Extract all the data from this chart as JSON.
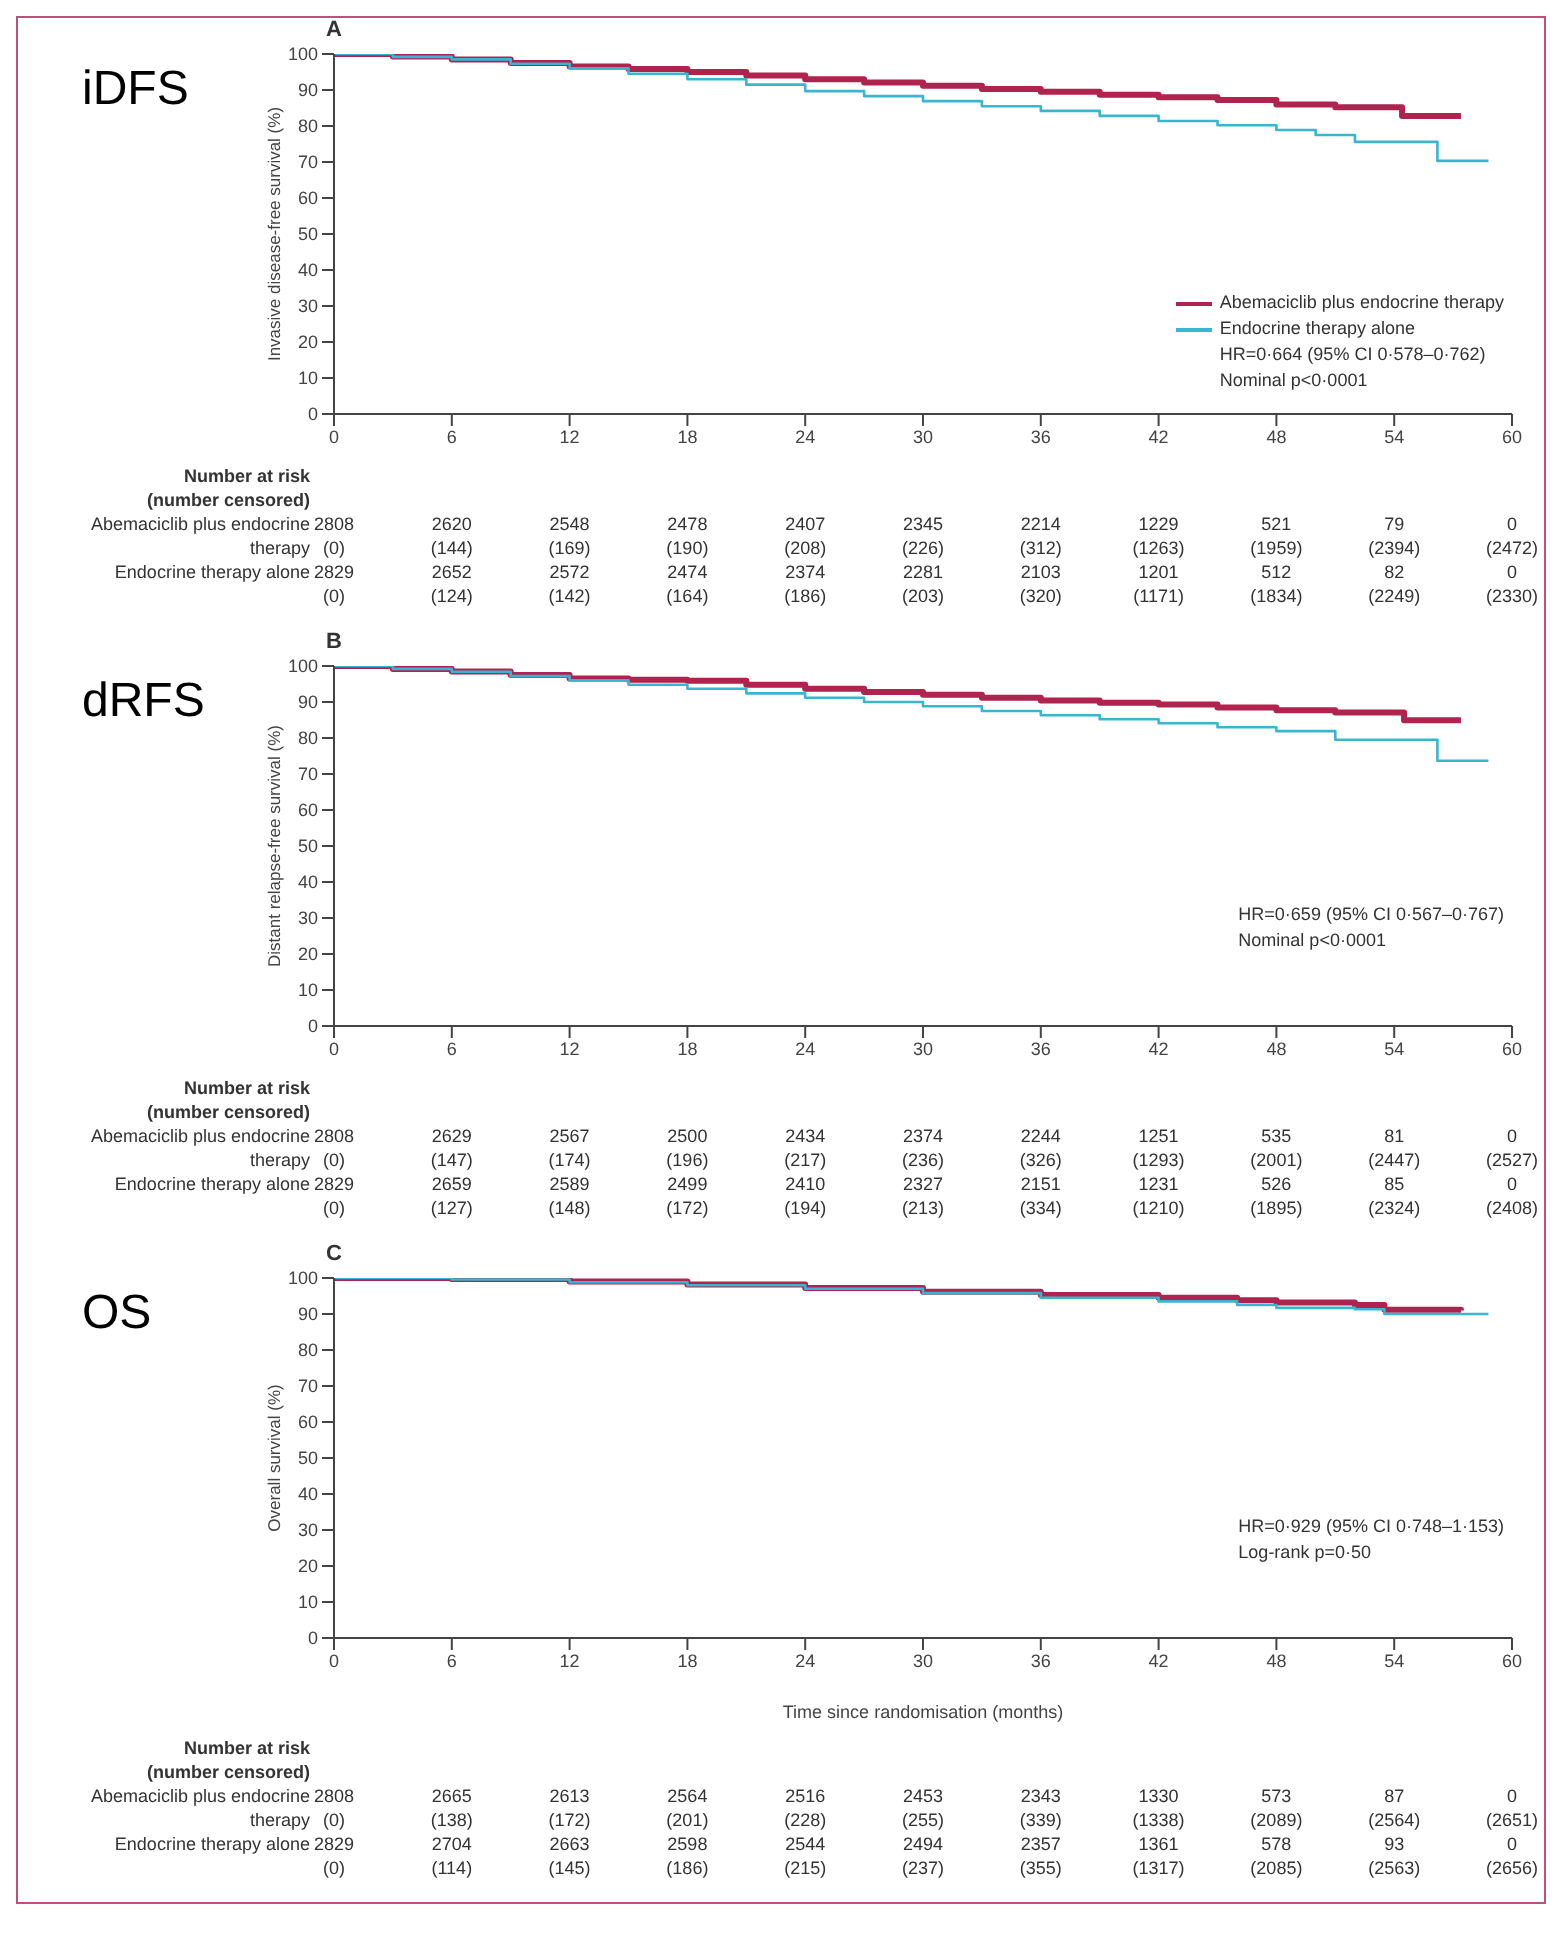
{
  "chart_data": [
    {
      "type": "step",
      "title": "A",
      "subtitle": "iDFS",
      "ylabel": "Invasive disease-free survival (%)",
      "xlim": [
        0,
        60
      ],
      "ylim": [
        0,
        100
      ],
      "xticks": [
        0,
        6,
        12,
        18,
        24,
        30,
        36,
        42,
        48,
        54,
        60
      ],
      "yticks": [
        0,
        10,
        20,
        30,
        40,
        50,
        60,
        70,
        80,
        90,
        100
      ],
      "legend": "bottom right",
      "series": [
        {
          "name": "Abemaciclib plus endocrine therapy",
          "color": "#b0234f",
          "x": [
            0,
            3,
            6,
            9,
            12,
            15,
            18,
            21,
            24,
            27,
            30,
            33,
            36,
            39,
            42,
            45,
            48,
            51,
            54.4,
            57.4
          ],
          "values": [
            100,
            99.3,
            98.5,
            97.5,
            96.5,
            95.8,
            95,
            94,
            93,
            92.1,
            91.2,
            90.3,
            89.5,
            88.7,
            88,
            87.2,
            86,
            85.2,
            82.8,
            82.8
          ]
        },
        {
          "name": "Endocrine therapy alone",
          "color": "#3ab5d1",
          "x": [
            0,
            3,
            6,
            9,
            12,
            15,
            18,
            21,
            24,
            27,
            30,
            33,
            36,
            39,
            42,
            45,
            48,
            50,
            52,
            56.2,
            58.8
          ],
          "values": [
            100,
            99.2,
            98.5,
            97.3,
            96,
            94.5,
            93,
            91.5,
            89.7,
            88.3,
            86.9,
            85.5,
            84.2,
            82.8,
            81.4,
            80.2,
            78.9,
            77.5,
            75.6,
            70.3,
            70.3
          ]
        }
      ],
      "annotations": [
        "HR=0·664 (95% CI 0·578–0·762)",
        "Nominal p<0·0001",
        "Number at risk",
        "(number censored)",
        "Abemaciclib plus endocrine",
        "2808",
        "2620",
        "2548",
        "2478",
        "2407",
        "2345",
        "2214",
        "1229",
        "521",
        "79",
        "0",
        "therapy",
        "(0)",
        "(144)",
        "(169)",
        "(190)",
        "(208)",
        "(226)",
        "(312)",
        "(1263)",
        "(1959)",
        "(2394)",
        "(2472)",
        "Endocrine therapy alone",
        "2829",
        "2652",
        "2572",
        "2474",
        "2374",
        "2281",
        "2103",
        "1201",
        "512",
        "82",
        "0",
        "(0)",
        "(124)",
        "(142)",
        "(164)",
        "(186)",
        "(203)",
        "(320)",
        "(1171)",
        "(1834)",
        "(2249)",
        "(2330)"
      ]
    },
    {
      "type": "step",
      "title": "B",
      "subtitle": "dRFS",
      "ylabel": "Distant relapse-free survival (%)",
      "xlim": [
        0,
        60
      ],
      "ylim": [
        0,
        100
      ],
      "xticks": [
        0,
        6,
        12,
        18,
        24,
        30,
        36,
        42,
        48,
        54,
        60
      ],
      "yticks": [
        0,
        10,
        20,
        30,
        40,
        50,
        60,
        70,
        80,
        90,
        100
      ],
      "series": [
        {
          "color": "#b0234f",
          "x": [
            0,
            3,
            6,
            9,
            12,
            15,
            18,
            21,
            24,
            27,
            30,
            33,
            36,
            39,
            42,
            45,
            48,
            51,
            54.5,
            57.4
          ],
          "values": [
            100,
            99.2,
            98.5,
            97.5,
            96.5,
            96.2,
            95.9,
            94.8,
            93.7,
            92.8,
            92,
            91.2,
            90.4,
            89.8,
            89.3,
            88.5,
            87.7,
            87.1,
            84.9,
            84.9
          ]
        },
        {
          "color": "#3ab5d1",
          "x": [
            0,
            3,
            6,
            9,
            12,
            15,
            18,
            21,
            24,
            27,
            30,
            33,
            36,
            39,
            42,
            45,
            48,
            51,
            56.2,
            58.8
          ],
          "values": [
            100,
            99.2,
            98.4,
            97.2,
            96,
            94.8,
            93.7,
            92.4,
            91.2,
            90,
            88.8,
            87.5,
            86.3,
            85.2,
            84.1,
            83,
            81.9,
            79.5,
            73.7,
            73.7
          ]
        }
      ],
      "annotations": [
        "HR=0·659 (95% CI 0·567–0·767)",
        "Nominal p<0·0001",
        "Number at risk",
        "(number censored)",
        "Abemaciclib plus endocrine",
        "2808",
        "2629",
        "2567",
        "2500",
        "2434",
        "2374",
        "2244",
        "1251",
        "535",
        "81",
        "0",
        "therapy",
        "(0)",
        "(147)",
        "(174)",
        "(196)",
        "(217)",
        "(236)",
        "(326)",
        "(1293)",
        "(2001)",
        "(2447)",
        "(2527)",
        "Endocrine therapy alone",
        "2829",
        "2659",
        "2589",
        "2499",
        "2410",
        "2327",
        "2151",
        "1231",
        "526",
        "85",
        "0",
        "(0)",
        "(127)",
        "(148)",
        "(172)",
        "(194)",
        "(213)",
        "(334)",
        "(1210)",
        "(1895)",
        "(2324)",
        "(2408)"
      ]
    },
    {
      "type": "step",
      "title": "C",
      "subtitle": "OS",
      "ylabel": "Overall survival (%)",
      "xlabel": "Time since randomisation (months)",
      "xlim": [
        0,
        60
      ],
      "ylim": [
        0,
        100
      ],
      "xticks": [
        0,
        6,
        12,
        18,
        24,
        30,
        36,
        42,
        48,
        54,
        60
      ],
      "yticks": [
        0,
        10,
        20,
        30,
        40,
        50,
        60,
        70,
        80,
        90,
        100
      ],
      "series": [
        {
          "color": "#b0234f",
          "x": [
            0,
            6,
            12,
            18,
            24,
            30,
            36,
            42,
            46,
            48,
            52,
            53.5,
            57.4
          ],
          "values": [
            100,
            99.7,
            99,
            98.2,
            97.2,
            96.2,
            95.3,
            94.5,
            93.8,
            93.2,
            92.5,
            91.2,
            91
          ]
        },
        {
          "color": "#3ab5d1",
          "x": [
            0,
            6,
            12,
            18,
            24,
            30,
            36,
            42,
            46,
            48,
            52,
            53.5,
            58.8
          ],
          "values": [
            100,
            99.6,
            98.8,
            98,
            97,
            95.8,
            94.5,
            93.5,
            92.5,
            91.7,
            91.3,
            90,
            90
          ]
        }
      ],
      "annotations": [
        "HR=0·929 (95% CI 0·748–1·153)",
        "Log-rank p=0·50",
        "Number at risk",
        "(number censored)",
        "Abemaciclib plus endocrine",
        "2808",
        "2665",
        "2613",
        "2564",
        "2516",
        "2453",
        "2343",
        "1330",
        "573",
        "87",
        "0",
        "therapy",
        "(0)",
        "(138)",
        "(172)",
        "(201)",
        "(228)",
        "(255)",
        "(339)",
        "(1338)",
        "(2089)",
        "(2564)",
        "(2651)",
        "Endocrine therapy alone",
        "2829",
        "2704",
        "2663",
        "2598",
        "2544",
        "2494",
        "2357",
        "1361",
        "578",
        "93",
        "0",
        "(0)",
        "(114)",
        "(145)",
        "(186)",
        "(215)",
        "(237)",
        "(355)",
        "(1317)",
        "(2085)",
        "(2563)",
        "(2656)"
      ]
    }
  ]
}
